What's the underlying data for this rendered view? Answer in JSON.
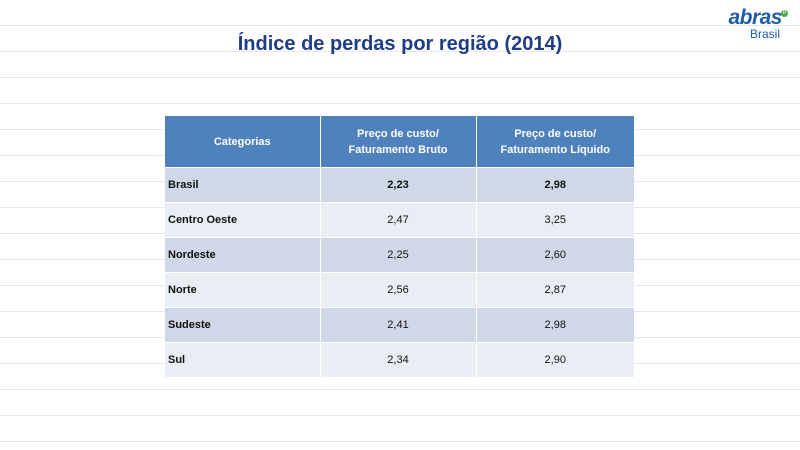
{
  "logo": {
    "brand": "abras",
    "sub": "Brasil",
    "reg": "R"
  },
  "title": "Índice de perdas por região (2014)",
  "table": {
    "headers": [
      [
        "Categorias"
      ],
      [
        "Preço de custo/",
        "Faturamento Bruto"
      ],
      [
        "Preço de custo/",
        "Faturamento Líquido"
      ]
    ],
    "rows": [
      [
        "Brasil",
        "2,23",
        "2,98"
      ],
      [
        "Centro Oeste",
        "2,47",
        "3,25"
      ],
      [
        "Nordeste",
        "2,25",
        "2,60"
      ],
      [
        "Norte",
        "2,56",
        "2,87"
      ],
      [
        "Sudeste",
        "2,41",
        "2,98"
      ],
      [
        "Sul",
        "2,34",
        "2,90"
      ]
    ]
  },
  "colors": {
    "header": "#4f81bd",
    "band_dark": "#d0d8e8",
    "band_light": "#e9edf4",
    "title": "#1f3c88",
    "logo": "#1f5fa8"
  }
}
